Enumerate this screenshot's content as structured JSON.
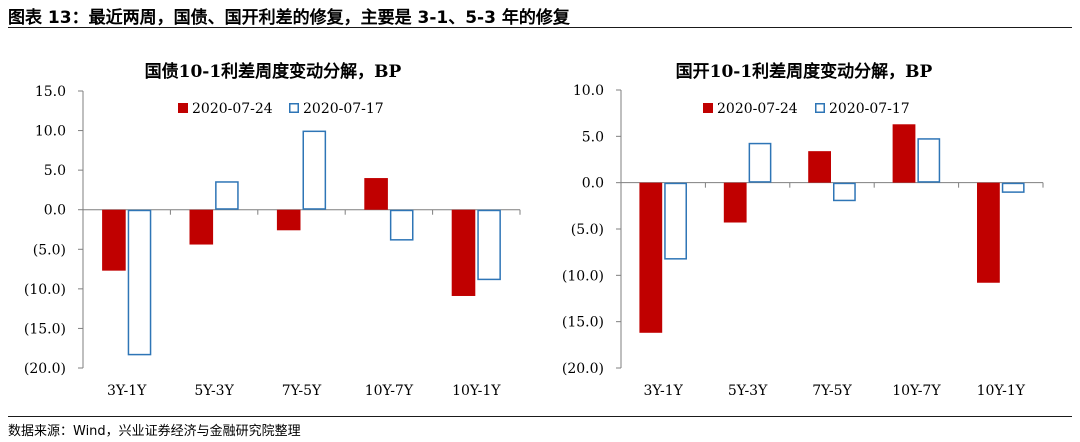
{
  "figure": {
    "title": "图表 13：最近两周，国债、国开利差的修复，主要是 3-1、5-3 年的修复",
    "source": "数据来源：Wind，兴业证券经济与金融研究院整理"
  },
  "colors": {
    "series_a": "#c00000",
    "series_b_stroke": "#2e75b6",
    "axis": "#7f7f7f"
  },
  "chart_data": [
    {
      "type": "bar",
      "title": "国债10-1利差周度变动分解，BP",
      "categories": [
        "3Y-1Y",
        "5Y-3Y",
        "7Y-5Y",
        "10Y-7Y",
        "10Y-1Y"
      ],
      "series": [
        {
          "name": "2020-07-24",
          "values": [
            -7.7,
            -4.4,
            -2.6,
            4.0,
            -10.9
          ]
        },
        {
          "name": "2020-07-17",
          "values": [
            -18.4,
            3.6,
            10.0,
            -3.9,
            -8.9
          ]
        }
      ],
      "ylim": [
        -20,
        15
      ],
      "yticks": [
        15,
        10,
        5,
        0,
        -5,
        -10,
        -15,
        -20
      ],
      "ytick_labels": [
        "15.0",
        "10.0",
        "5.0",
        "0.0",
        "(5.0)",
        "(10.0)",
        "(15.0)",
        "(20.0)"
      ],
      "legend": "top"
    },
    {
      "type": "bar",
      "title": "国开10-1利差周度变动分解，BP",
      "categories": [
        "3Y-1Y",
        "5Y-3Y",
        "7Y-5Y",
        "10Y-7Y",
        "10Y-1Y"
      ],
      "series": [
        {
          "name": "2020-07-24",
          "values": [
            -16.2,
            -4.3,
            3.4,
            6.3,
            -10.8
          ]
        },
        {
          "name": "2020-07-17",
          "values": [
            -8.3,
            4.3,
            -2.0,
            4.8,
            -1.1
          ]
        }
      ],
      "ylim": [
        -20,
        10
      ],
      "yticks": [
        10,
        5,
        0,
        -5,
        -10,
        -15,
        -20
      ],
      "ytick_labels": [
        "10.0",
        "5.0",
        "0.0",
        "(5.0)",
        "(10.0)",
        "(15.0)",
        "(20.0)"
      ],
      "legend": "top"
    }
  ]
}
